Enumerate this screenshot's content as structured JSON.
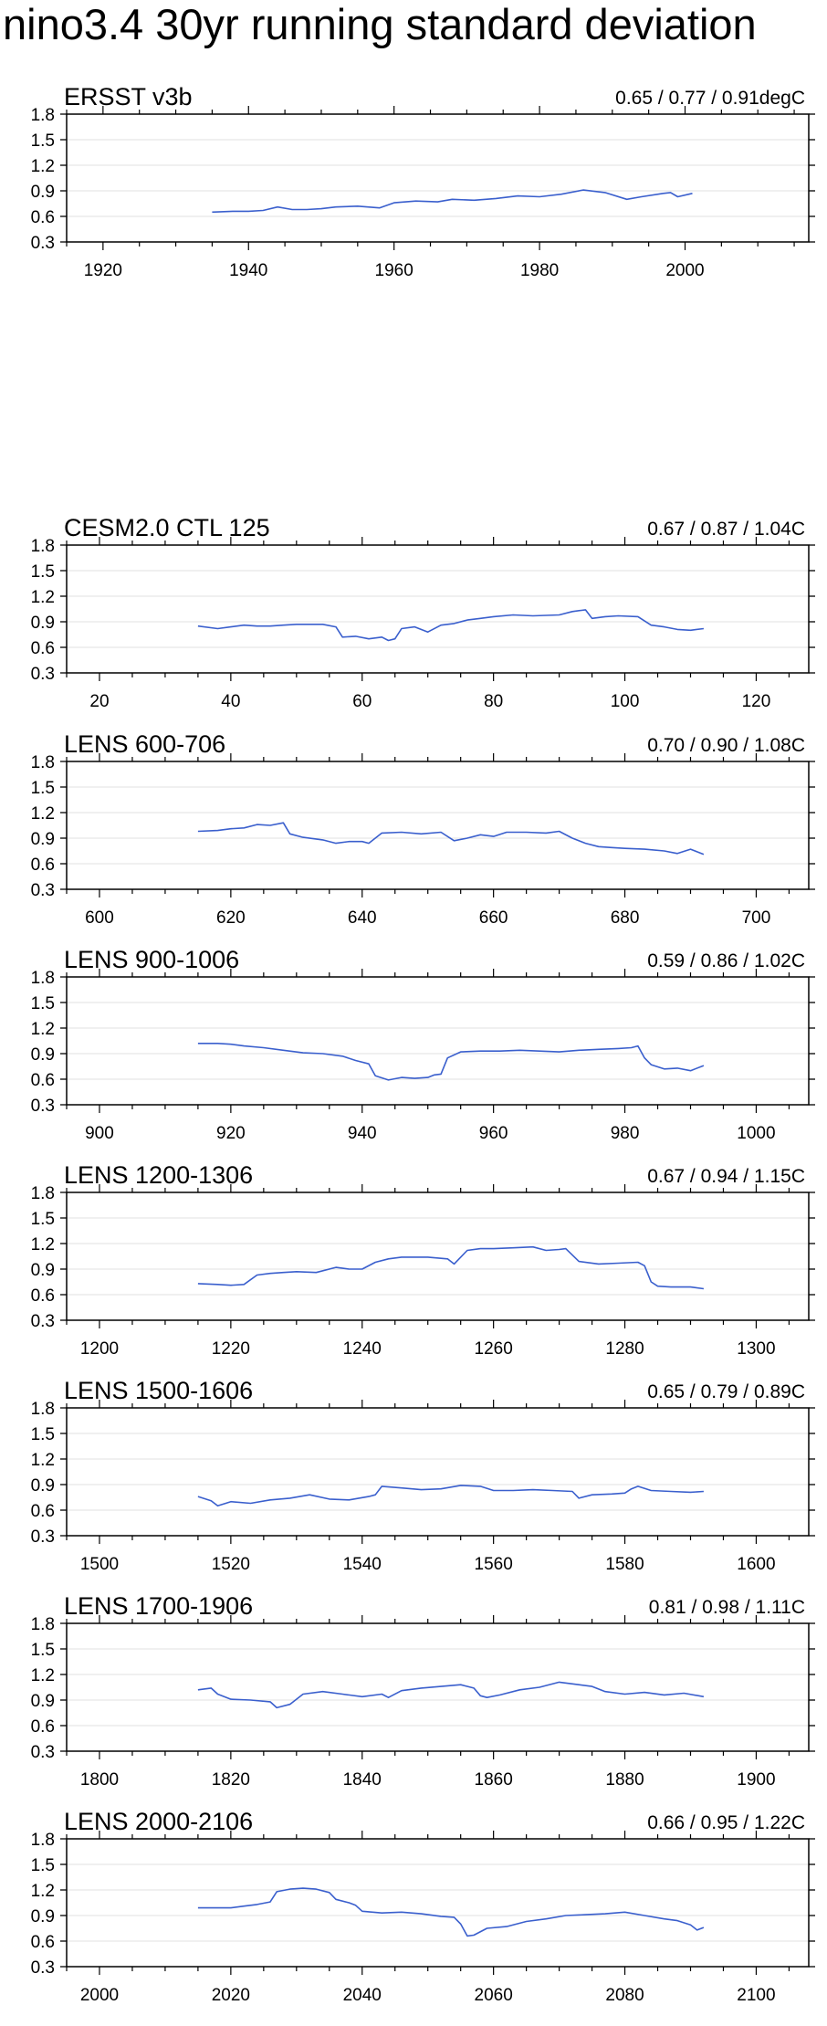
{
  "title": "nino3.4 30yr running standard deviation",
  "line_color": "#3a5fcd",
  "chart_data": [
    {
      "type": "line",
      "label": "ERSST v3b",
      "stats": "0.65 / 0.77 / 0.91degC",
      "xlim": [
        1915,
        2017
      ],
      "ylim": [
        0.3,
        1.8
      ],
      "yticks": [
        "0.3",
        "0.6",
        "0.9",
        "1.2",
        "1.5",
        "1.8"
      ],
      "xticks": [
        "1920",
        "1940",
        "1960",
        "1980",
        "2000"
      ],
      "x": [
        1935,
        1938,
        1940,
        1942,
        1944,
        1946,
        1948,
        1950,
        1952,
        1955,
        1958,
        1960,
        1963,
        1966,
        1968,
        1971,
        1974,
        1977,
        1980,
        1983,
        1986,
        1989,
        1992,
        1994,
        1997,
        1998,
        1999,
        2001
      ],
      "y": [
        0.65,
        0.66,
        0.66,
        0.67,
        0.71,
        0.68,
        0.68,
        0.69,
        0.71,
        0.72,
        0.7,
        0.76,
        0.78,
        0.77,
        0.8,
        0.79,
        0.81,
        0.84,
        0.83,
        0.86,
        0.91,
        0.88,
        0.8,
        0.83,
        0.87,
        0.88,
        0.83,
        0.87
      ]
    },
    {
      "type": "line",
      "label": "CESM2.0 CTL 125",
      "stats": "0.67 / 0.87 / 1.04C",
      "xlim": [
        15,
        128
      ],
      "ylim": [
        0.3,
        1.8
      ],
      "yticks": [
        "0.3",
        "0.6",
        "0.9",
        "1.2",
        "1.5",
        "1.8"
      ],
      "xticks": [
        "20",
        "40",
        "60",
        "80",
        "100",
        "120"
      ],
      "x": [
        35,
        38,
        40,
        42,
        44,
        46,
        48,
        50,
        52,
        54,
        56,
        57,
        59,
        61,
        63,
        64,
        65,
        66,
        68,
        70,
        72,
        74,
        76,
        78,
        80,
        83,
        86,
        90,
        92,
        94,
        95,
        97,
        99,
        102,
        104,
        106,
        108,
        110,
        112
      ],
      "y": [
        0.85,
        0.82,
        0.84,
        0.86,
        0.85,
        0.85,
        0.86,
        0.87,
        0.87,
        0.87,
        0.84,
        0.72,
        0.73,
        0.7,
        0.72,
        0.68,
        0.7,
        0.82,
        0.84,
        0.78,
        0.86,
        0.88,
        0.92,
        0.94,
        0.96,
        0.98,
        0.97,
        0.98,
        1.02,
        1.04,
        0.94,
        0.96,
        0.97,
        0.96,
        0.86,
        0.84,
        0.81,
        0.8,
        0.82
      ]
    },
    {
      "type": "line",
      "label": "LENS 600-706",
      "stats": "0.70 / 0.90 / 1.08C",
      "xlim": [
        595,
        708
      ],
      "ylim": [
        0.3,
        1.8
      ],
      "yticks": [
        "0.3",
        "0.6",
        "0.9",
        "1.2",
        "1.5",
        "1.8"
      ],
      "xticks": [
        "600",
        "620",
        "640",
        "660",
        "680",
        "700"
      ],
      "x": [
        615,
        618,
        620,
        622,
        624,
        626,
        628,
        629,
        631,
        634,
        636,
        638,
        640,
        641,
        643,
        646,
        649,
        652,
        654,
        656,
        658,
        660,
        662,
        665,
        668,
        670,
        672,
        674,
        676,
        678,
        680,
        683,
        686,
        688,
        690,
        692
      ],
      "y": [
        0.98,
        0.99,
        1.01,
        1.02,
        1.06,
        1.05,
        1.08,
        0.95,
        0.91,
        0.88,
        0.84,
        0.86,
        0.86,
        0.84,
        0.96,
        0.97,
        0.95,
        0.97,
        0.87,
        0.9,
        0.94,
        0.92,
        0.97,
        0.97,
        0.96,
        0.98,
        0.9,
        0.84,
        0.8,
        0.79,
        0.78,
        0.77,
        0.75,
        0.72,
        0.77,
        0.71
      ]
    },
    {
      "type": "line",
      "label": "LENS 900-1006",
      "stats": "0.59 / 0.86 / 1.02C",
      "xlim": [
        895,
        1008
      ],
      "ylim": [
        0.3,
        1.8
      ],
      "yticks": [
        "0.3",
        "0.6",
        "0.9",
        "1.2",
        "1.5",
        "1.8"
      ],
      "xticks": [
        "900",
        "920",
        "940",
        "960",
        "980",
        "1000"
      ],
      "x": [
        915,
        918,
        920,
        922,
        925,
        928,
        931,
        934,
        937,
        939,
        941,
        942,
        944,
        946,
        948,
        950,
        951,
        952,
        953,
        955,
        958,
        961,
        964,
        967,
        970,
        973,
        976,
        979,
        981,
        982,
        983,
        984,
        986,
        988,
        990,
        992
      ],
      "y": [
        1.02,
        1.02,
        1.01,
        0.99,
        0.97,
        0.94,
        0.91,
        0.9,
        0.87,
        0.82,
        0.78,
        0.64,
        0.59,
        0.62,
        0.61,
        0.62,
        0.65,
        0.66,
        0.85,
        0.92,
        0.93,
        0.93,
        0.94,
        0.93,
        0.92,
        0.94,
        0.95,
        0.96,
        0.97,
        0.99,
        0.85,
        0.77,
        0.72,
        0.73,
        0.7,
        0.76
      ]
    },
    {
      "type": "line",
      "label": "LENS 1200-1306",
      "stats": "0.67 / 0.94 / 1.15C",
      "xlim": [
        1195,
        1308
      ],
      "ylim": [
        0.3,
        1.8
      ],
      "yticks": [
        "0.3",
        "0.6",
        "0.9",
        "1.2",
        "1.5",
        "1.8"
      ],
      "xticks": [
        "1200",
        "1220",
        "1240",
        "1260",
        "1280",
        "1300"
      ],
      "x": [
        1215,
        1218,
        1220,
        1222,
        1224,
        1226,
        1228,
        1230,
        1233,
        1236,
        1238,
        1240,
        1242,
        1244,
        1246,
        1250,
        1253,
        1254,
        1256,
        1258,
        1260,
        1263,
        1266,
        1268,
        1270,
        1271,
        1273,
        1276,
        1279,
        1282,
        1283,
        1284,
        1285,
        1287,
        1290,
        1292
      ],
      "y": [
        0.73,
        0.72,
        0.71,
        0.72,
        0.83,
        0.85,
        0.86,
        0.87,
        0.86,
        0.92,
        0.9,
        0.9,
        0.98,
        1.02,
        1.04,
        1.04,
        1.02,
        0.96,
        1.12,
        1.14,
        1.14,
        1.15,
        1.16,
        1.12,
        1.13,
        1.14,
        0.99,
        0.96,
        0.97,
        0.98,
        0.94,
        0.75,
        0.7,
        0.69,
        0.69,
        0.67
      ]
    },
    {
      "type": "line",
      "label": "LENS 1500-1606",
      "stats": "0.65 / 0.79 / 0.89C",
      "xlim": [
        1495,
        1608
      ],
      "ylim": [
        0.3,
        1.8
      ],
      "yticks": [
        "0.3",
        "0.6",
        "0.9",
        "1.2",
        "1.5",
        "1.8"
      ],
      "xticks": [
        "1500",
        "1520",
        "1540",
        "1560",
        "1580",
        "1600"
      ],
      "x": [
        1515,
        1517,
        1518,
        1520,
        1523,
        1526,
        1529,
        1532,
        1535,
        1538,
        1541,
        1542,
        1543,
        1546,
        1549,
        1552,
        1555,
        1558,
        1560,
        1563,
        1566,
        1569,
        1572,
        1573,
        1575,
        1578,
        1580,
        1581,
        1582,
        1584,
        1587,
        1590,
        1592
      ],
      "y": [
        0.76,
        0.71,
        0.65,
        0.7,
        0.68,
        0.72,
        0.74,
        0.78,
        0.73,
        0.72,
        0.76,
        0.78,
        0.88,
        0.86,
        0.84,
        0.85,
        0.89,
        0.88,
        0.83,
        0.83,
        0.84,
        0.83,
        0.82,
        0.74,
        0.78,
        0.79,
        0.8,
        0.85,
        0.88,
        0.83,
        0.82,
        0.81,
        0.82
      ]
    },
    {
      "type": "line",
      "label": "LENS 1700-1906",
      "stats": "0.81 / 0.98 / 1.11C",
      "xlim": [
        1795,
        1908
      ],
      "ylim": [
        0.3,
        1.8
      ],
      "yticks": [
        "0.3",
        "0.6",
        "0.9",
        "1.2",
        "1.5",
        "1.8"
      ],
      "xticks": [
        "1800",
        "1820",
        "1840",
        "1860",
        "1880",
        "1900"
      ],
      "x": [
        1815,
        1817,
        1818,
        1820,
        1823,
        1826,
        1827,
        1829,
        1831,
        1834,
        1837,
        1840,
        1843,
        1844,
        1846,
        1849,
        1852,
        1855,
        1857,
        1858,
        1859,
        1861,
        1864,
        1867,
        1870,
        1873,
        1875,
        1877,
        1880,
        1883,
        1886,
        1889,
        1892
      ],
      "y": [
        1.02,
        1.04,
        0.97,
        0.91,
        0.9,
        0.88,
        0.81,
        0.85,
        0.97,
        1.0,
        0.97,
        0.94,
        0.97,
        0.93,
        1.01,
        1.04,
        1.06,
        1.08,
        1.04,
        0.95,
        0.93,
        0.96,
        1.02,
        1.05,
        1.11,
        1.08,
        1.06,
        1.0,
        0.97,
        0.99,
        0.96,
        0.98,
        0.94
      ]
    },
    {
      "type": "line",
      "label": "LENS 2000-2106",
      "stats": "0.66 / 0.95 / 1.22C",
      "xlim": [
        1995,
        2108
      ],
      "ylim": [
        0.3,
        1.8
      ],
      "yticks": [
        "0.3",
        "0.6",
        "0.9",
        "1.2",
        "1.5",
        "1.8"
      ],
      "xticks": [
        "2000",
        "2020",
        "2040",
        "2060",
        "2080",
        "2100"
      ],
      "x": [
        2015,
        2018,
        2020,
        2022,
        2024,
        2026,
        2027,
        2029,
        2031,
        2033,
        2035,
        2036,
        2038,
        2039,
        2040,
        2043,
        2046,
        2049,
        2052,
        2054,
        2055,
        2056,
        2057,
        2059,
        2062,
        2065,
        2068,
        2071,
        2074,
        2077,
        2080,
        2083,
        2086,
        2088,
        2090,
        2091,
        2092
      ],
      "y": [
        0.99,
        0.99,
        0.99,
        1.01,
        1.03,
        1.06,
        1.18,
        1.21,
        1.22,
        1.21,
        1.17,
        1.09,
        1.05,
        1.02,
        0.95,
        0.93,
        0.94,
        0.92,
        0.89,
        0.88,
        0.8,
        0.66,
        0.67,
        0.75,
        0.77,
        0.83,
        0.86,
        0.9,
        0.91,
        0.92,
        0.94,
        0.9,
        0.86,
        0.84,
        0.79,
        0.73,
        0.76
      ]
    }
  ]
}
